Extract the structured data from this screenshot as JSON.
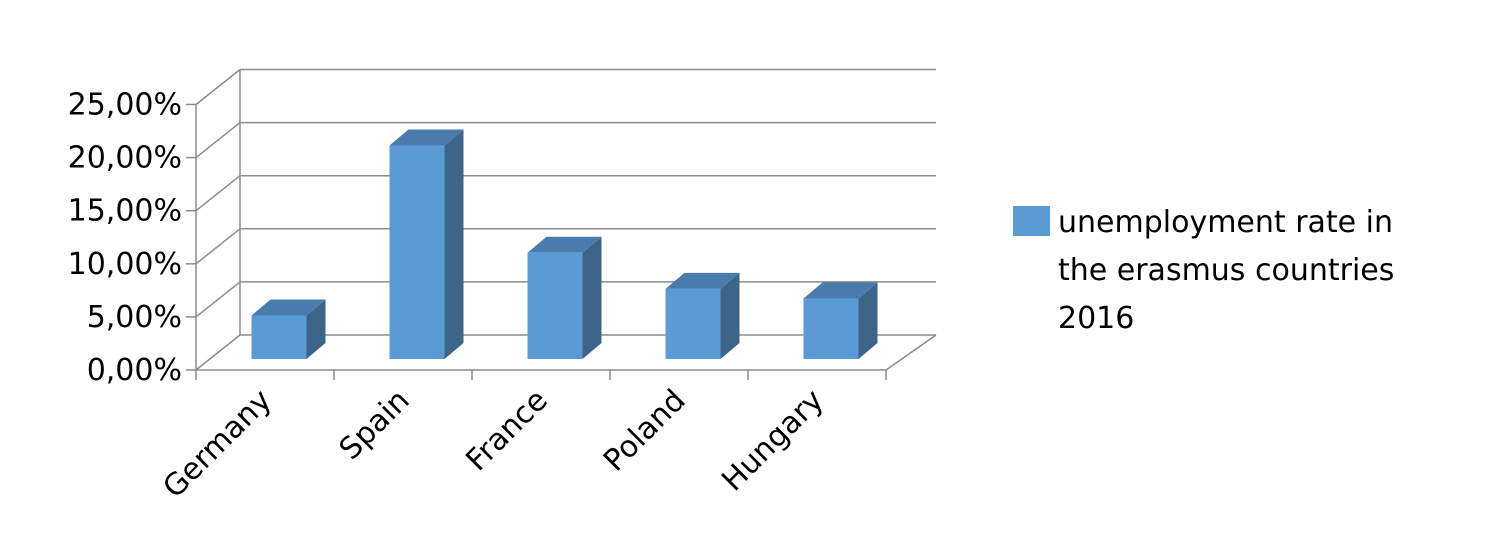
{
  "chart_data": {
    "type": "bar",
    "categories": [
      "Germany",
      "Spain",
      "France",
      "Poland",
      "Hungary"
    ],
    "series": [
      {
        "name": "unemployment rate in the erasmus countries 2016",
        "values": [
          0.041,
          0.201,
          0.1,
          0.066,
          0.057
        ],
        "color": "#5b9bd5"
      }
    ],
    "y_ticks": [
      "0,00%",
      "5,00%",
      "10,00%",
      "15,00%",
      "20,00%",
      "25,00%"
    ],
    "ylim": [
      0,
      0.25
    ],
    "grid": true,
    "legend_position": "right",
    "legend_lines": [
      "unemployment rate in",
      "the erasmus countries",
      "2016"
    ],
    "style_3d": true
  }
}
